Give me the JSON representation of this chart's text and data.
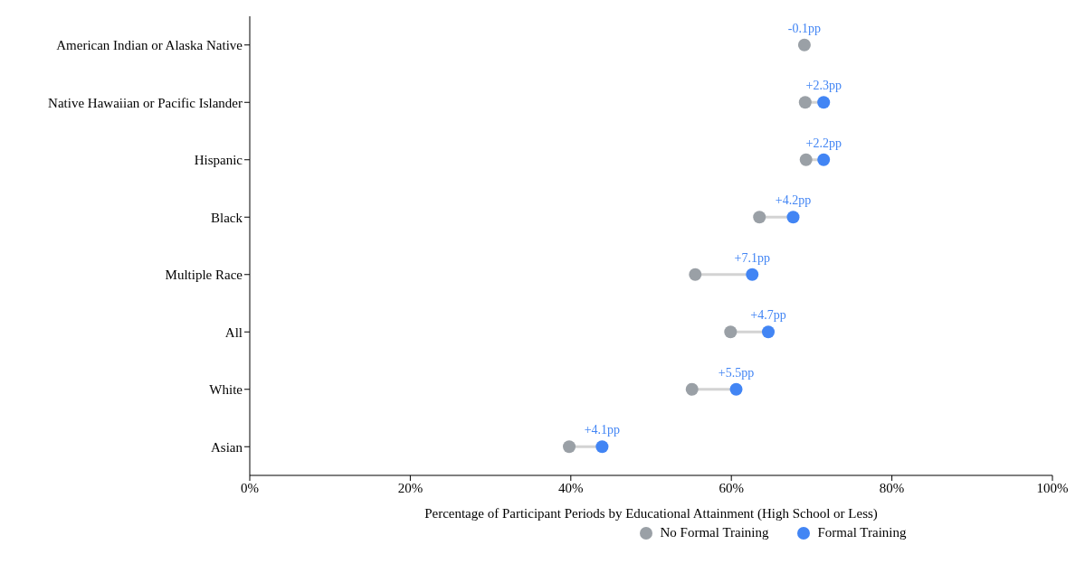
{
  "chart_data": {
    "type": "scatter",
    "orientation": "horizontal",
    "xlabel": "Percentage of Participant Periods by Educational Attainment (High School or Less)",
    "categories": [
      "American Indian or Alaska Native",
      "Native Hawaiian or Pacific Islander",
      "Hispanic",
      "Black",
      "Multiple Race",
      "All",
      "White",
      "Asian"
    ],
    "series": [
      {
        "name": "No Formal Training",
        "color": "#9aa0a6",
        "values": [
          69.1,
          69.2,
          69.3,
          63.5,
          55.5,
          59.9,
          55.1,
          39.8
        ]
      },
      {
        "name": "Formal Training",
        "color": "#4285f4",
        "values": [
          null,
          71.5,
          71.5,
          67.7,
          62.6,
          64.6,
          60.6,
          43.9
        ]
      }
    ],
    "xlim": [
      0,
      100
    ],
    "xticks": [
      {
        "value": 0,
        "label": "0%"
      },
      {
        "value": 20,
        "label": "20%"
      },
      {
        "value": 40,
        "label": "40%"
      },
      {
        "value": 60,
        "label": "60%"
      },
      {
        "value": 80,
        "label": "80%"
      },
      {
        "value": 100,
        "label": "100%"
      }
    ],
    "annotations": [
      {
        "text": "-0.1pp",
        "x": 69.1,
        "y": "American Indian or Alaska Native"
      },
      {
        "text": "+2.3pp",
        "x": 71.5,
        "y": "Native Hawaiian or Pacific Islander"
      },
      {
        "text": "+2.2pp",
        "x": 71.5,
        "y": "Hispanic"
      },
      {
        "text": "+4.2pp",
        "x": 67.7,
        "y": "Black"
      },
      {
        "text": "+7.1pp",
        "x": 62.6,
        "y": "Multiple Race"
      },
      {
        "text": "+4.7pp",
        "x": 64.6,
        "y": "All"
      },
      {
        "text": "+5.5pp",
        "x": 60.6,
        "y": "White"
      },
      {
        "text": "+4.1pp",
        "x": 43.9,
        "y": "Asian"
      }
    ],
    "legend": "bottom",
    "marker": "circle",
    "grid": false
  }
}
